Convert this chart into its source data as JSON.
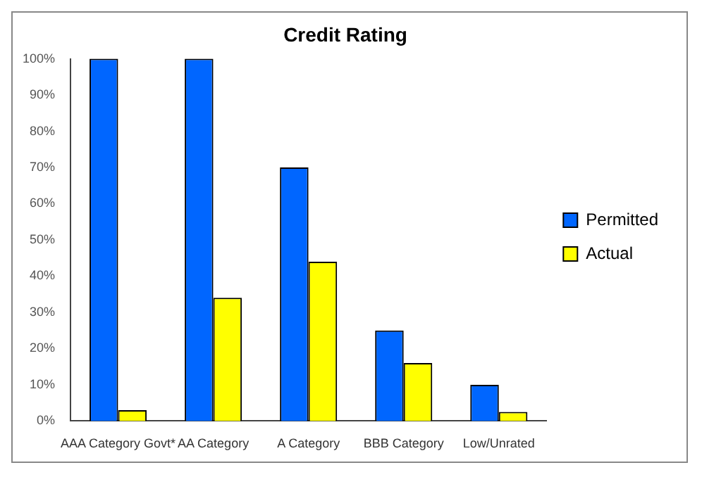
{
  "chart_data": {
    "type": "bar",
    "title": "Credit Rating",
    "categories": [
      "AAA Category Govt*",
      "AA Category",
      "A Category",
      "BBB Category",
      "Low/Unrated"
    ],
    "series": [
      {
        "name": "Permitted",
        "color": "#0066ff",
        "values": [
          100,
          100,
          70,
          25,
          10
        ]
      },
      {
        "name": "Actual",
        "color": "#ffff00",
        "values": [
          3,
          34,
          44,
          16,
          2.5
        ]
      }
    ],
    "ylim": [
      0,
      100
    ],
    "yticks": [
      {
        "value": 0,
        "label": "0%"
      },
      {
        "value": 10,
        "label": "10%"
      },
      {
        "value": 20,
        "label": "20%"
      },
      {
        "value": 30,
        "label": "30%"
      },
      {
        "value": 40,
        "label": "40%"
      },
      {
        "value": 50,
        "label": "50%"
      },
      {
        "value": 60,
        "label": "60%"
      },
      {
        "value": 70,
        "label": "70%"
      },
      {
        "value": 80,
        "label": "80%"
      },
      {
        "value": 90,
        "label": "90%"
      },
      {
        "value": 100,
        "label": "100%"
      }
    ],
    "grid": false,
    "legend": "right"
  }
}
